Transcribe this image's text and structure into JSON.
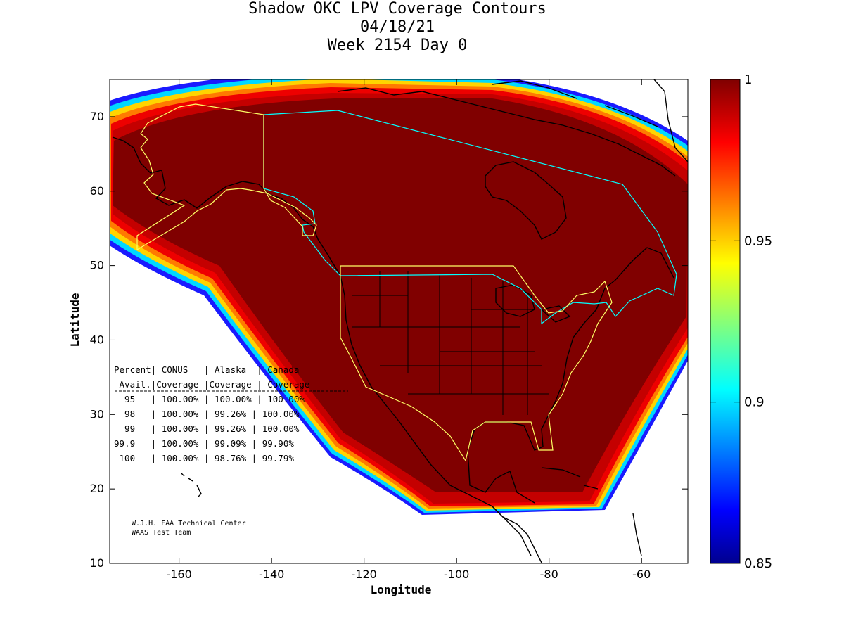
{
  "title": {
    "line1": "Shadow OKC LPV Coverage Contours",
    "line2": "04/18/21",
    "line3": "Week 2154 Day 0"
  },
  "axes": {
    "xlabel": "Longitude",
    "ylabel": "Latitude",
    "xticks": [
      "-160",
      "-140",
      "-120",
      "-100",
      "-80",
      "-60"
    ],
    "yticks": [
      "10",
      "20",
      "30",
      "40",
      "50",
      "60",
      "70"
    ],
    "xlim": [
      -175,
      -50
    ],
    "ylim": [
      10,
      75
    ]
  },
  "colorbar": {
    "ticks": [
      "1",
      "0.95",
      "0.9",
      "0.85"
    ],
    "range": [
      0.85,
      1
    ],
    "colormap": "jet"
  },
  "table": {
    "header1": "Percent| CONUS   | Alaska  | Canada",
    "header2": " Avail.|Coverage |Coverage | Coverage",
    "rows": [
      "  95   | 100.00% | 100.00% | 100.00%",
      "  98   | 100.00% | 99.26% | 100.00%",
      "  99   | 100.00% | 99.26% | 100.00%",
      "99.9   | 100.00% | 99.09% | 99.90%",
      " 100   | 100.00% | 98.76% | 99.79%"
    ]
  },
  "credit": {
    "line1": "W.J.H. FAA Technical Center",
    "line2": "WAAS Test Team"
  },
  "colors": {
    "coverage_full": "#800000",
    "coverage_edge": "#d40000",
    "conus_boundary": "#ffff66",
    "canada_boundary": "#00ffff",
    "coastline": "#000000"
  }
}
